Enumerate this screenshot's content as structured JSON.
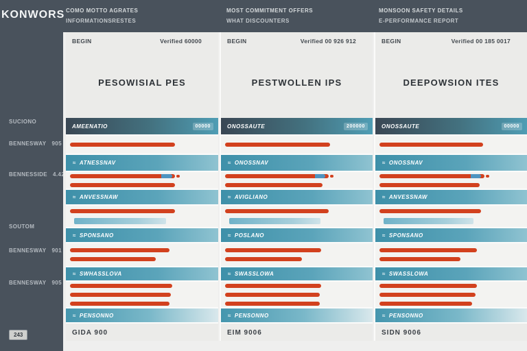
{
  "brand": "KONWORS",
  "colors": {
    "slate": "#49525c",
    "accent_red": "#d2411e",
    "accent_teal": "#4293ac",
    "bar_blue": "#4e94c0",
    "panel_bg": "#ebebe9"
  },
  "sidebar": {
    "items": [
      {
        "label": "SUCIONO",
        "value": ""
      },
      {
        "label": "BENNESWAY",
        "value": "905"
      },
      {
        "label": "BENNESSIDE",
        "value": "4.42"
      },
      {
        "label": "SOUTOM",
        "value": ""
      },
      {
        "label": "BENNESWAY",
        "value": "901"
      },
      {
        "label": "BENNESWAY",
        "value": "905"
      }
    ],
    "badge": "243"
  },
  "columns": [
    {
      "header_line1": "COMO MOTTO AGRATES",
      "header_line2": "INFORMATIONSRESTES",
      "begin_label": "BEGIN",
      "verified_label": "Verified 60000",
      "title": "PESOWISIAL PES",
      "band_label": "AMEENATIO",
      "band_badge": "00000",
      "rows": [
        {
          "type": "bars",
          "bars": [
            {
              "style": "red",
              "width_pct": 71
            }
          ]
        },
        {
          "type": "label",
          "text": "ATNESSNAV",
          "fade": false
        },
        {
          "type": "bars",
          "bars": [
            {
              "style": "redblue",
              "width_pct": 71
            },
            {
              "style": "red",
              "width_pct": 71
            }
          ]
        },
        {
          "type": "label",
          "text": "ANVESSNAW",
          "fade": false
        },
        {
          "type": "bars",
          "bars": [
            {
              "style": "red",
              "width_pct": 71
            },
            {
              "style": "teal",
              "width_pct": 62
            }
          ]
        },
        {
          "type": "label",
          "text": "SPONSANO",
          "fade": false
        },
        {
          "type": "bars",
          "bars": [
            {
              "style": "red",
              "width_pct": 67
            },
            {
              "style": "red",
              "width_pct": 58
            }
          ]
        },
        {
          "type": "label",
          "text": "SWHASSLOVA",
          "fade": false
        },
        {
          "type": "bars",
          "bars": [
            {
              "style": "red",
              "width_pct": 69
            },
            {
              "style": "red",
              "width_pct": 68
            },
            {
              "style": "red",
              "width_pct": 67
            }
          ]
        },
        {
          "type": "label",
          "text": "PENSONNO",
          "fade": true
        }
      ],
      "footer": "GIDA 900"
    },
    {
      "header_line1": "MOST COMMITMENT OFFERS",
      "header_line2": "WHAT DISCOUNTERS",
      "begin_label": "BEGIN",
      "verified_label": "Verified 00 926 912",
      "title": "PESTWOLLEN IPS",
      "band_label": "ONOSSAUTE",
      "band_badge": "200000",
      "rows": [
        {
          "type": "bars",
          "bars": [
            {
              "style": "red",
              "width_pct": 71
            }
          ]
        },
        {
          "type": "label",
          "text": "ONOSSNAV",
          "fade": false
        },
        {
          "type": "bars",
          "bars": [
            {
              "style": "redblue",
              "width_pct": 70
            },
            {
              "style": "red",
              "width_pct": 66
            }
          ]
        },
        {
          "type": "label",
          "text": "AVIGLIANO",
          "fade": false
        },
        {
          "type": "bars",
          "bars": [
            {
              "style": "red",
              "width_pct": 70
            },
            {
              "style": "teal",
              "width_pct": 62
            }
          ]
        },
        {
          "type": "label",
          "text": "POSLANO",
          "fade": false
        },
        {
          "type": "bars",
          "bars": [
            {
              "style": "red",
              "width_pct": 65
            },
            {
              "style": "red",
              "width_pct": 52
            }
          ]
        },
        {
          "type": "label",
          "text": "SWASSLOWA",
          "fade": false
        },
        {
          "type": "bars",
          "bars": [
            {
              "style": "red",
              "width_pct": 65
            },
            {
              "style": "red",
              "width_pct": 64
            },
            {
              "style": "red",
              "width_pct": 64
            }
          ]
        },
        {
          "type": "label",
          "text": "PENSONNO",
          "fade": true
        }
      ],
      "footer": "EIM 9006"
    },
    {
      "header_line1": "MONSOON SAFETY DETAILS",
      "header_line2": "E-PERFORMANCE REPORT",
      "begin_label": "BEGIN",
      "verified_label": "Verified 00 185 0017",
      "title": "DEEPOWSION ITES",
      "band_label": "ONOSSAUTE",
      "band_badge": "00000",
      "rows": [
        {
          "type": "bars",
          "bars": [
            {
              "style": "red",
              "width_pct": 70
            }
          ]
        },
        {
          "type": "label",
          "text": "ONOSSNAV",
          "fade": false
        },
        {
          "type": "bars",
          "bars": [
            {
              "style": "redblue",
              "width_pct": 71
            },
            {
              "style": "red",
              "width_pct": 68
            }
          ]
        },
        {
          "type": "label",
          "text": "ANVESSNAW",
          "fade": false
        },
        {
          "type": "bars",
          "bars": [
            {
              "style": "red",
              "width_pct": 69
            },
            {
              "style": "teal",
              "width_pct": 61
            }
          ]
        },
        {
          "type": "label",
          "text": "SPONSANO",
          "fade": false
        },
        {
          "type": "bars",
          "bars": [
            {
              "style": "red",
              "width_pct": 66
            },
            {
              "style": "red",
              "width_pct": 55
            }
          ]
        },
        {
          "type": "label",
          "text": "SWASSLOWA",
          "fade": false
        },
        {
          "type": "bars",
          "bars": [
            {
              "style": "red",
              "width_pct": 66
            },
            {
              "style": "red",
              "width_pct": 65
            },
            {
              "style": "red",
              "width_pct": 63
            }
          ]
        },
        {
          "type": "label",
          "text": "PENSONNO",
          "fade": true
        }
      ],
      "footer": "SIDN 9006"
    }
  ]
}
